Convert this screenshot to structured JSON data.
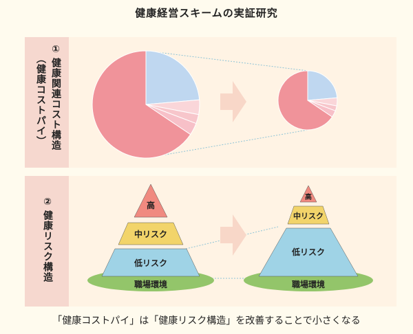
{
  "title": "健康経営スキームの実証研究",
  "section1": {
    "number": "①",
    "line1": "健康関連コスト構造",
    "line2": "（健康コストパイ）"
  },
  "section2": {
    "number": "②",
    "line1": "健康リスク構造"
  },
  "pyramid_before": {
    "top": "高",
    "middle": "中リスク",
    "bottom": "低リスク",
    "base": "職場環境"
  },
  "pyramid_after": {
    "top": "高",
    "middle": "中リスク",
    "bottom": "低リスク",
    "base": "職場環境"
  },
  "footer": "「健康コストパイ」は「健康リスク構造」を改善することで小さくなる",
  "colors": {
    "pie_main": "#f0939a",
    "pie_blue": "#bfd7f0",
    "pie_pink1": "#f7c6cb",
    "pie_pink2": "#fad6d9",
    "pyr_top": "#f08a80",
    "pyr_mid": "#f2d46a",
    "pyr_low": "#9fd3e6",
    "base": "#93c56a",
    "arrow": "#f8d7c8"
  }
}
